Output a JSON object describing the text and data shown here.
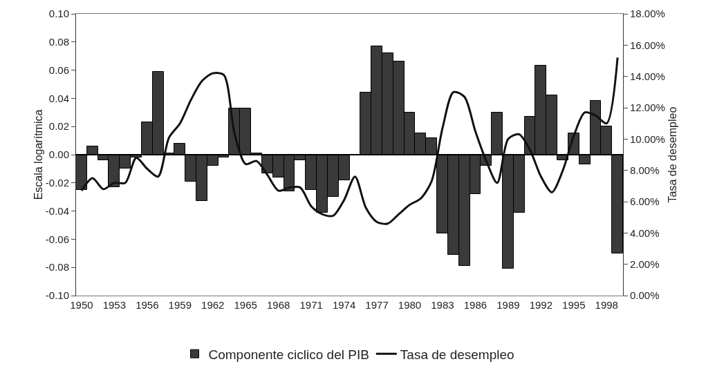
{
  "chart_data": {
    "type": "bar",
    "ylabel": "Escala logarítmica",
    "y2label": "Tasa de desempleo",
    "x": [
      1950,
      1951,
      1952,
      1953,
      1954,
      1955,
      1956,
      1957,
      1958,
      1959,
      1960,
      1961,
      1962,
      1963,
      1964,
      1965,
      1966,
      1967,
      1968,
      1969,
      1970,
      1971,
      1972,
      1973,
      1974,
      1975,
      1976,
      1977,
      1978,
      1979,
      1980,
      1981,
      1982,
      1983,
      1984,
      1985,
      1986,
      1987,
      1988,
      1989,
      1990,
      1991,
      1992,
      1993,
      1994,
      1995,
      1996,
      1997,
      1998,
      1999
    ],
    "xlim": [
      1949.5,
      1999.5
    ],
    "xticks": [
      1950,
      1953,
      1956,
      1959,
      1962,
      1965,
      1968,
      1971,
      1974,
      1977,
      1980,
      1983,
      1986,
      1989,
      1992,
      1995,
      1998
    ],
    "ylim": [
      -0.1,
      0.1
    ],
    "yticks": [
      {
        "value": -0.1,
        "label": "-0.10"
      },
      {
        "value": -0.08,
        "label": "-0.08"
      },
      {
        "value": -0.06,
        "label": "-0.06"
      },
      {
        "value": -0.04,
        "label": "-0.04"
      },
      {
        "value": -0.02,
        "label": "-0.02"
      },
      {
        "value": 0,
        "label": "0.00"
      },
      {
        "value": 0.02,
        "label": "0.02"
      },
      {
        "value": 0.04,
        "label": "0.04"
      },
      {
        "value": 0.06,
        "label": "0.06"
      },
      {
        "value": 0.08,
        "label": "0.08"
      },
      {
        "value": 0.1,
        "label": "0.10"
      }
    ],
    "y2lim": [
      0,
      18
    ],
    "y2ticks": [
      {
        "value": 0,
        "label": "0.00%"
      },
      {
        "value": 2,
        "label": "2.00%"
      },
      {
        "value": 4,
        "label": "4.00%"
      },
      {
        "value": 6,
        "label": "6.00%"
      },
      {
        "value": 8,
        "label": "8.00%"
      },
      {
        "value": 10,
        "label": "10.00%"
      },
      {
        "value": 12,
        "label": "12.00%"
      },
      {
        "value": 14,
        "label": "14.00%"
      },
      {
        "value": 16,
        "label": "16.00%"
      },
      {
        "value": 18,
        "label": "18.00%"
      }
    ],
    "grid": false,
    "legend": "bottom",
    "ref_lines": [
      {
        "axis": "y",
        "value": 0,
        "color": "#000000"
      }
    ],
    "series": [
      {
        "name": "Componente ciclico del PIB",
        "color": "#3a3a3a",
        "values": [
          -0.025,
          0.006,
          -0.004,
          -0.023,
          -0.01,
          -0.002,
          0.023,
          0.059,
          0.001,
          0.008,
          -0.019,
          -0.033,
          -0.008,
          -0.002,
          0.033,
          0.033,
          0.001,
          -0.013,
          -0.016,
          -0.026,
          -0.004,
          -0.025,
          -0.041,
          -0.03,
          -0.018,
          null,
          0.044,
          0.077,
          0.072,
          0.066,
          0.03,
          0.015,
          0.012,
          -0.056,
          -0.071,
          -0.079,
          -0.028,
          -0.008,
          0.03,
          -0.081,
          -0.041,
          0.027,
          0.063,
          0.042,
          -0.004,
          0.015,
          -0.007,
          0.038,
          0.02,
          -0.07
        ]
      },
      {
        "name": "Tasa de desempleo",
        "type": "line",
        "axis": "y2",
        "color": "#111111",
        "line_style": "solid",
        "marker": "none",
        "values": [
          6.7,
          7.5,
          6.8,
          7.2,
          7.2,
          8.8,
          8.1,
          7.6,
          10.1,
          11.0,
          12.5,
          13.7,
          14.2,
          14.1,
          10.3,
          8.4,
          8.6,
          7.7,
          6.7,
          6.9,
          6.9,
          5.7,
          5.2,
          5.1,
          6.1,
          7.6,
          5.6,
          4.7,
          4.6,
          5.2,
          5.8,
          6.2,
          7.3,
          10.7,
          13.0,
          12.7,
          10.5,
          8.6,
          7.2,
          10.0,
          10.3,
          9.3,
          7.6,
          6.6,
          8.0,
          10.2,
          11.7,
          11.5,
          11.0,
          15.2
        ]
      }
    ]
  }
}
